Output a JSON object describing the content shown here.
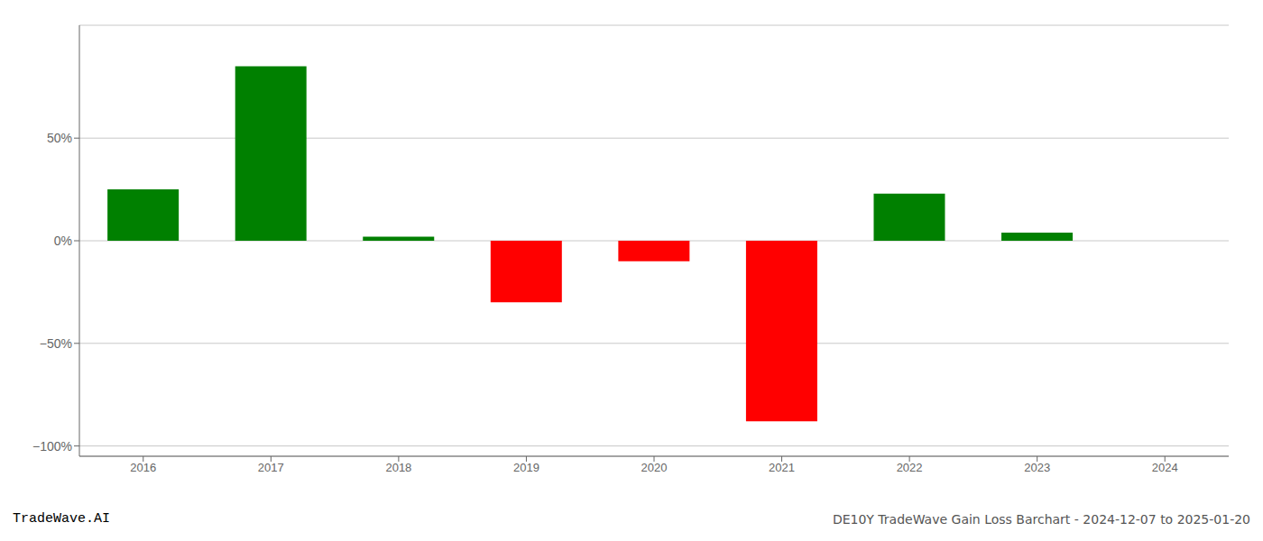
{
  "chart_data": {
    "type": "bar",
    "categories": [
      "2016",
      "2017",
      "2018",
      "2019",
      "2020",
      "2021",
      "2022",
      "2023",
      "2024"
    ],
    "values": [
      25.0,
      85.0,
      2.0,
      -30.0,
      -10.0,
      -88.0,
      23.0,
      4.0,
      0.0
    ],
    "colors": [
      "#008000",
      "#008000",
      "#008000",
      "#ff0000",
      "#ff0000",
      "#ff0000",
      "#008000",
      "#008000",
      "#008000"
    ],
    "ylim": [
      -105,
      105
    ],
    "yticks": [
      {
        "value": -100,
        "label": "−100%"
      },
      {
        "value": -50,
        "label": "−50%"
      },
      {
        "value": 0,
        "label": "0%"
      },
      {
        "value": 50,
        "label": "50%"
      }
    ],
    "grid": true,
    "annotations": [
      "TradeWave.AI",
      "DE10Y TradeWave Gain Loss Barchart - 2024-12-07 to 2025-01-20"
    ]
  }
}
